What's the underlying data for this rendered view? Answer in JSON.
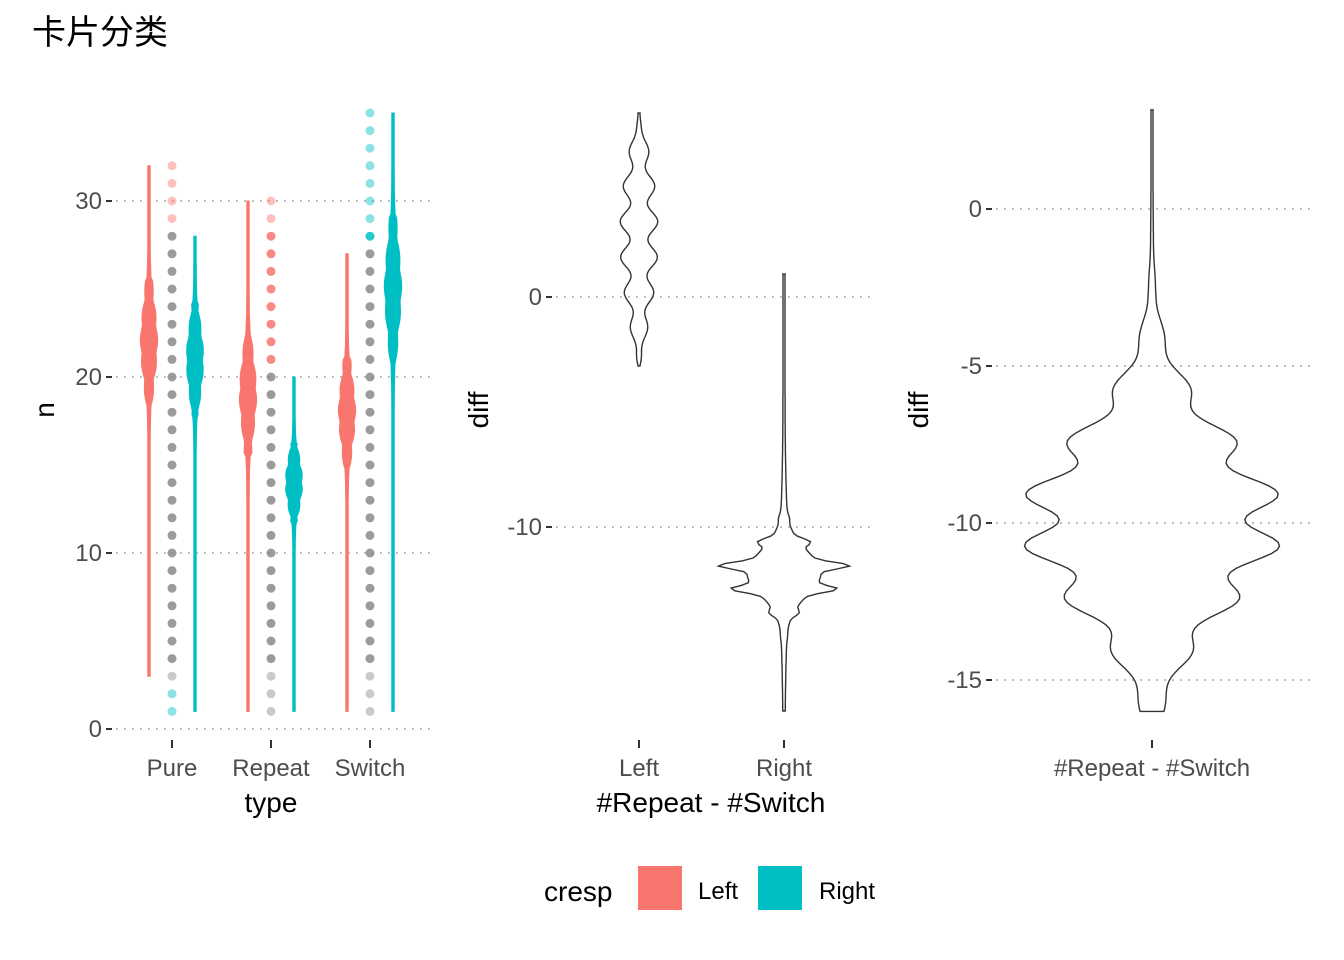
{
  "title": "卡片分类",
  "chart_data": [
    {
      "type": "violin",
      "xlabel": "type",
      "ylabel": "n",
      "ylim": [
        0,
        35
      ],
      "yticks": [
        0,
        10,
        20,
        30
      ],
      "categories": [
        "Pure",
        "Repeat",
        "Switch"
      ],
      "grid": "horizontal dotted",
      "series": [
        {
          "name": "Left",
          "color": "#F8766D",
          "ranges": [
            [
              3,
              32
            ],
            [
              1,
              30
            ],
            [
              1,
              27
            ]
          ],
          "modes": [
            22,
            19,
            18
          ]
        },
        {
          "name": "Right",
          "color": "#00BFC4",
          "ranges": [
            [
              1,
              28
            ],
            [
              1,
              20
            ],
            [
              1,
              35
            ]
          ],
          "modes": [
            21,
            14,
            25
          ]
        }
      ],
      "points": {
        "min": 1,
        "max": 35,
        "step": 1
      }
    },
    {
      "type": "violin",
      "xlabel": "#Repeat - #Switch",
      "ylabel": "diff",
      "ylim": [
        -18,
        8
      ],
      "yticks": [
        -10,
        0
      ],
      "categories": [
        "Left",
        "Right"
      ],
      "grid": "horizontal dotted",
      "violins": [
        {
          "category": "Left",
          "range": [
            -3,
            8
          ],
          "center": 1.5
        },
        {
          "category": "Right",
          "range": [
            -18,
            1
          ],
          "center": -12
        }
      ]
    },
    {
      "type": "violin",
      "xlabel": "",
      "ylabel": "diff",
      "ylim": [
        -16,
        3
      ],
      "yticks": [
        -15,
        -10,
        -5,
        0
      ],
      "categories": [
        "#Repeat - #Switch"
      ],
      "grid": "horizontal dotted",
      "violins": [
        {
          "category": "#Repeat - #Switch",
          "range": [
            -16,
            3
          ],
          "center": -10
        }
      ]
    }
  ],
  "legend": {
    "title": "cresp",
    "position": "bottom",
    "items": [
      {
        "label": "Left",
        "color": "#F8766D"
      },
      {
        "label": "Right",
        "color": "#00BFC4"
      }
    ]
  }
}
